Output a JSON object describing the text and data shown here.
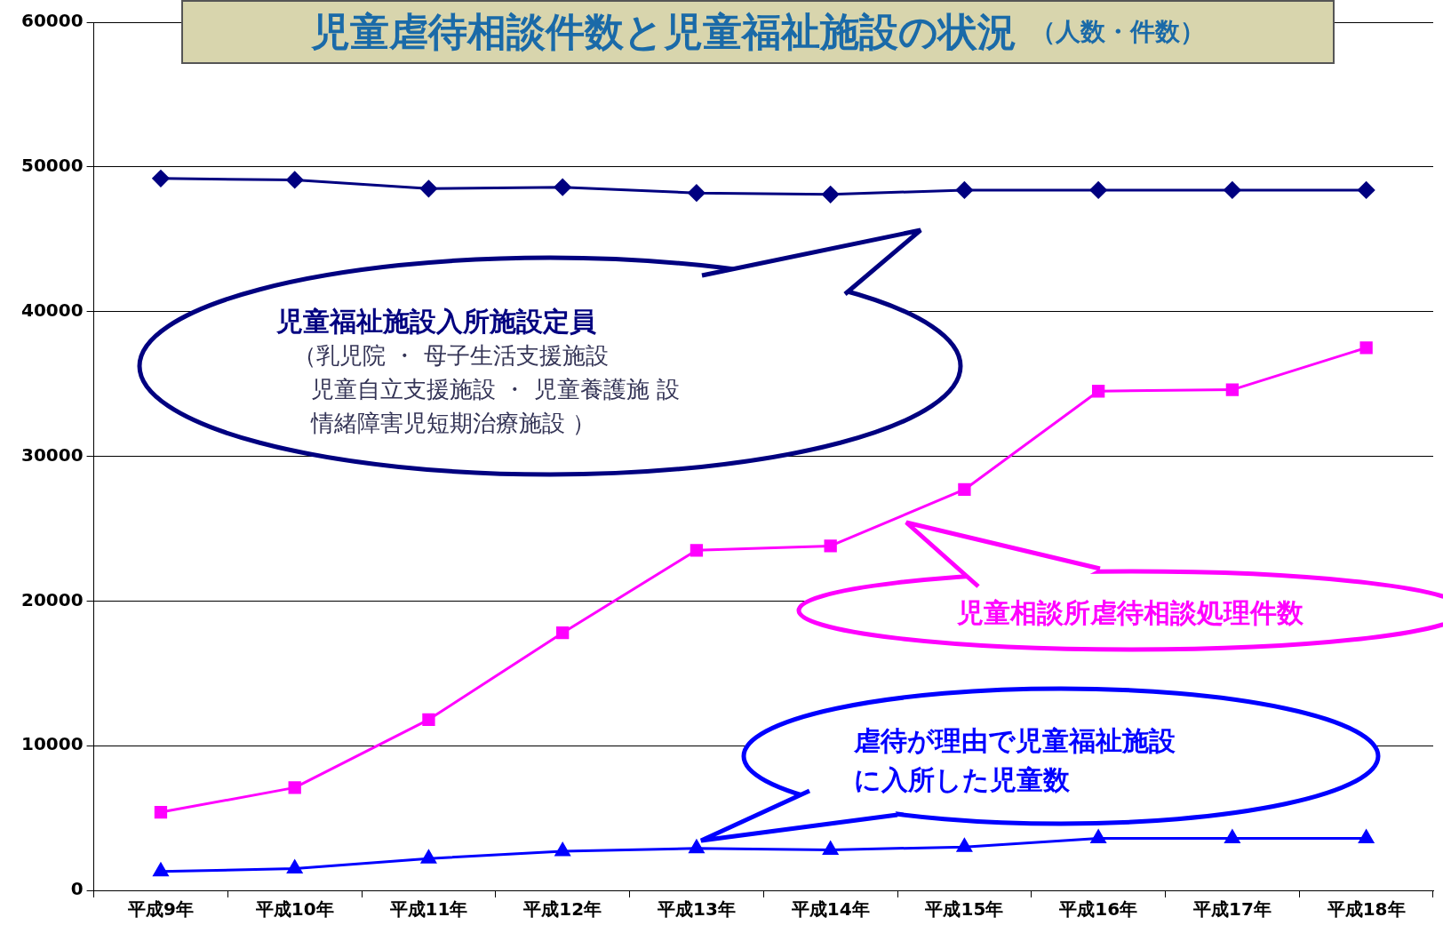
{
  "chart_data": {
    "type": "line",
    "title": "児童虐待相談件数と児童福祉施設の状況",
    "subtitle": "（人数・件数）",
    "categories": [
      "平成9年",
      "平成10年",
      "平成11年",
      "平成12年",
      "平成13年",
      "平成14年",
      "平成15年",
      "平成16年",
      "平成17年",
      "平成18年"
    ],
    "series": [
      {
        "name": "児童福祉施設入所施設定員",
        "color": "#000080",
        "marker": "diamond",
        "values": [
          49200,
          49100,
          48500,
          48600,
          48200,
          48100,
          48400,
          48400,
          48400,
          48400
        ]
      },
      {
        "name": "児童相談所虐待相談処理件数",
        "color": "#ff00ff",
        "marker": "square",
        "values": [
          5400,
          7100,
          11800,
          17800,
          23500,
          23800,
          27700,
          34500,
          34600,
          37500
        ]
      },
      {
        "name": "虐待が理由で児童福祉施設に入所した児童数",
        "color": "#0000ff",
        "marker": "triangle",
        "values": [
          1300,
          1500,
          2200,
          2700,
          2900,
          2800,
          3000,
          3600,
          3600,
          3600
        ]
      }
    ],
    "annotations": [
      "（乳児院 ・ 母子生活支援施設",
      "児童自立支援施設 ・ 児童養護施 設",
      "情緒障害児短期治療施設 ）"
    ],
    "ylim": [
      0,
      60000
    ],
    "yticks": [
      0,
      10000,
      20000,
      30000,
      40000,
      50000,
      60000
    ],
    "grid": "y",
    "legend": false
  }
}
